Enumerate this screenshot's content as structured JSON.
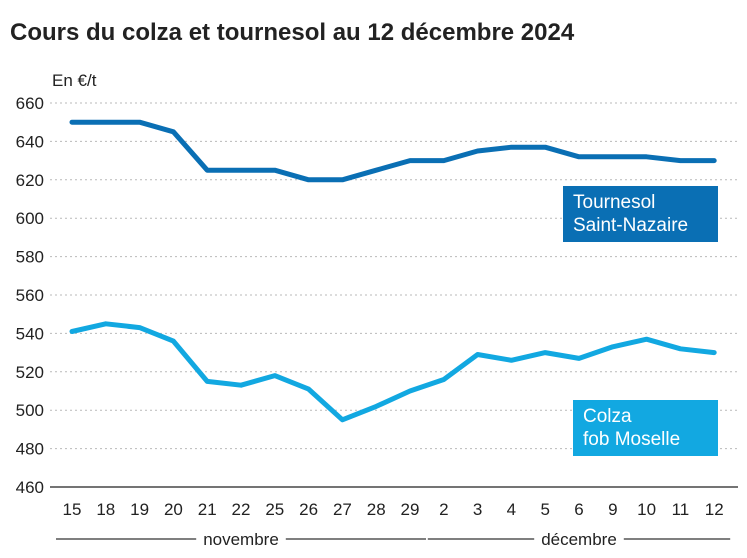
{
  "chart_data": {
    "type": "line",
    "title": "Cours du colza et tournesol au 12 décembre 2024",
    "ylabel": "En €/t",
    "xlabel": "",
    "ylim": [
      460,
      660
    ],
    "yticks": [
      460,
      480,
      500,
      520,
      540,
      560,
      580,
      600,
      620,
      640,
      660
    ],
    "grid": true,
    "categories": [
      "15",
      "18",
      "19",
      "20",
      "21",
      "22",
      "25",
      "26",
      "27",
      "28",
      "29",
      "2",
      "3",
      "4",
      "5",
      "6",
      "9",
      "10",
      "11",
      "12"
    ],
    "months": [
      {
        "label": "novembre",
        "from": 0,
        "to": 10
      },
      {
        "label": "décembre",
        "from": 11,
        "to": 19
      }
    ],
    "series": [
      {
        "name": "Tournesol Saint-Nazaire",
        "label_lines": [
          "Tournesol",
          "Saint-Nazaire"
        ],
        "color": "#0a6fb4",
        "values": [
          650,
          650,
          650,
          645,
          625,
          625,
          625,
          620,
          620,
          625,
          630,
          630,
          635,
          637,
          637,
          632,
          632,
          632,
          630,
          630
        ]
      },
      {
        "name": "Colza fob Moselle",
        "label_lines": [
          "Colza",
          "fob Moselle"
        ],
        "color": "#12a8e1",
        "values": [
          541,
          545,
          543,
          536,
          515,
          513,
          518,
          511,
          495,
          502,
          510,
          516,
          529,
          526,
          530,
          527,
          533,
          537,
          532,
          530
        ]
      }
    ]
  }
}
